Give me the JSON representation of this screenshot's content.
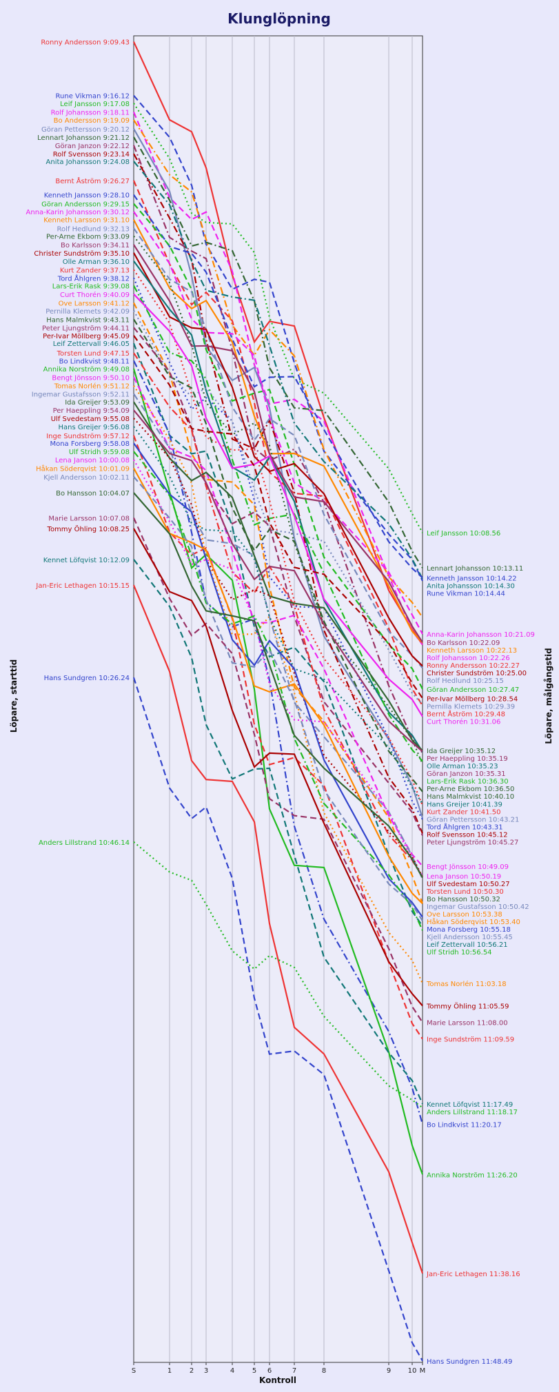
{
  "chart_data": {
    "type": "line",
    "title": "Klunglöpning",
    "xlabel": "Kontroll",
    "ylabel_left": "Löpare, starttid",
    "ylabel_right": "Löpare, målgångstid",
    "controls": [
      "S",
      "1",
      "2",
      "3",
      "4",
      "5",
      "6",
      "7",
      "8",
      "9",
      "10",
      "M"
    ],
    "control_x": [
      0,
      52,
      84,
      105,
      143,
      175,
      197,
      233,
      276,
      370,
      404,
      419
    ],
    "ylim": [
      "9:09",
      "11:49"
    ],
    "grid": true,
    "series": [
      {
        "name": "Ronny Andersson",
        "start": "9:09.43",
        "finish": "10:22.27",
        "color": "#ee3333",
        "dash": "solid"
      },
      {
        "name": "Rune Vikman",
        "start": "9:16.12",
        "finish": "10:14.44",
        "color": "#3344cc",
        "dash": "dashed"
      },
      {
        "name": "Leif Jansson",
        "start": "9:17.08",
        "finish": "10:08.56",
        "color": "#22bb22",
        "dash": "dotted"
      },
      {
        "name": "Rolf Johansson",
        "start": "9:18.11",
        "finish": "10:22.26",
        "color": "#ee22ee",
        "dash": "dashed"
      },
      {
        "name": "Bo Andersson",
        "start": "9:19.09",
        "finish": "",
        "color": "#ff8800",
        "dash": "dashdot"
      },
      {
        "name": "Göran Pettersson",
        "start": "9:20.12",
        "finish": "10:43.21",
        "color": "#7788bb",
        "dash": "solid"
      },
      {
        "name": "Lennart Johansson",
        "start": "9:21.12",
        "finish": "10:13.11",
        "color": "#336633",
        "dash": "dashdot"
      },
      {
        "name": "Göran Janzon",
        "start": "9:22.12",
        "finish": "10:35.31",
        "color": "#993366",
        "dash": "dashdot"
      },
      {
        "name": "Rolf Svensson",
        "start": "9:23.14",
        "finish": "10:45.12",
        "color": "#aa0000",
        "dash": "dashdot"
      },
      {
        "name": "Anita Johansson",
        "start": "9:24.08",
        "finish": "10:14.30",
        "color": "#117777",
        "dash": "dashdot"
      },
      {
        "name": "Bernt Åström",
        "start": "9:26.27",
        "finish": "10:29.48",
        "color": "#ee3333",
        "dash": "dashed"
      },
      {
        "name": "Kenneth Jansson",
        "start": "9:28.10",
        "finish": "10:14.22",
        "color": "#3344cc",
        "dash": "dashed"
      },
      {
        "name": "Göran Andersson",
        "start": "9:29.15",
        "finish": "10:27.47",
        "color": "#22bb22",
        "dash": "dashed"
      },
      {
        "name": "Anna-Karin Johansson",
        "start": "9:30.12",
        "finish": "10:21.09",
        "color": "#ee22ee",
        "dash": "dashed"
      },
      {
        "name": "Kenneth Larsson",
        "start": "9:31.10",
        "finish": "10:22.13",
        "color": "#ff8800",
        "dash": "solid"
      },
      {
        "name": "Rolf Hedlund",
        "start": "9:32.13",
        "finish": "10:25.15",
        "color": "#7788bb",
        "dash": "dashed"
      },
      {
        "name": "Per-Arne Ekbom",
        "start": "9:33.09",
        "finish": "10:36.50",
        "color": "#336633",
        "dash": "dotted"
      },
      {
        "name": "Bo Karlsson",
        "start": "9:34.11",
        "finish": "10:22.09",
        "color": "#993366",
        "dash": "solid"
      },
      {
        "name": "Christer Sundström",
        "start": "9:35.10",
        "finish": "10:25.00",
        "color": "#aa0000",
        "dash": "solid"
      },
      {
        "name": "Olle Arman",
        "start": "9:36.10",
        "finish": "10:35.23",
        "color": "#117777",
        "dash": "solid"
      },
      {
        "name": "Kurt Zander",
        "start": "9:37.13",
        "finish": "10:41.50",
        "color": "#ee3333",
        "dash": "dotted"
      },
      {
        "name": "Tord Åhlgren",
        "start": "9:38.12",
        "finish": "10:43.31",
        "color": "#3344cc",
        "dash": "dotted"
      },
      {
        "name": "Lars-Erik Rask",
        "start": "9:39.08",
        "finish": "10:36.30",
        "color": "#22bb22",
        "dash": "dashdot"
      },
      {
        "name": "Curt Thorén",
        "start": "9:40.09",
        "finish": "10:31.06",
        "color": "#ee22ee",
        "dash": "solid"
      },
      {
        "name": "Ove Larsson",
        "start": "9:41.12",
        "finish": "10:53.38",
        "color": "#ff8800",
        "dash": "dashed"
      },
      {
        "name": "Pernilla Klemets",
        "start": "9:42.09",
        "finish": "10:29.39",
        "color": "#7788bb",
        "dash": "dotted"
      },
      {
        "name": "Hans Malmkvist",
        "start": "9:43.11",
        "finish": "10:40.10",
        "color": "#336633",
        "dash": "dashed"
      },
      {
        "name": "Peter Ljungström",
        "start": "9:44.11",
        "finish": "10:45.27",
        "color": "#993366",
        "dash": "dashed"
      },
      {
        "name": "Per-Ivar Möllberg",
        "start": "9:45.09",
        "finish": "10:28.54",
        "color": "#aa0000",
        "dash": "dashed"
      },
      {
        "name": "Leif Zettervall",
        "start": "9:46.05",
        "finish": "10:56.21",
        "color": "#117777",
        "dash": "dashed"
      },
      {
        "name": "Torsten Lund",
        "start": "9:47.15",
        "finish": "10:50.30",
        "color": "#ee3333",
        "dash": "dashdot"
      },
      {
        "name": "Bo Lindkvist",
        "start": "9:48.11",
        "finish": "11:20.17",
        "color": "#3344cc",
        "dash": "dashdot"
      },
      {
        "name": "Annika Norström",
        "start": "9:49.08",
        "finish": "11:26.20",
        "color": "#22bb22",
        "dash": "solid"
      },
      {
        "name": "Bengt Jönsson",
        "start": "9:50.10",
        "finish": "10:49.09",
        "color": "#ee22ee",
        "dash": "dashed"
      },
      {
        "name": "Tomas Norlén",
        "start": "9:51.12",
        "finish": "11:03.18",
        "color": "#ff8800",
        "dash": "dotted"
      },
      {
        "name": "Ingemar Gustafsson",
        "start": "9:52.11",
        "finish": "10:50.42",
        "color": "#7788bb",
        "dash": "dashdot"
      },
      {
        "name": "Ida Greijer",
        "start": "9:53.09",
        "finish": "10:35.12",
        "color": "#336633",
        "dash": "solid"
      },
      {
        "name": "Per Haeppling",
        "start": "9:54.09",
        "finish": "10:35.19",
        "color": "#993366",
        "dash": "solid"
      },
      {
        "name": "Ulf Svedestam",
        "start": "9:55.08",
        "finish": "10:50.27",
        "color": "#aa0000",
        "dash": "dotted"
      },
      {
        "name": "Hans Greijer",
        "start": "9:56.08",
        "finish": "10:41.39",
        "color": "#117777",
        "dash": "dotted"
      },
      {
        "name": "Inge Sundström",
        "start": "9:57.12",
        "finish": "11:09.59",
        "color": "#ee3333",
        "dash": "dashed"
      },
      {
        "name": "Mona Forsberg",
        "start": "9:58.08",
        "finish": "10:55.18",
        "color": "#3344cc",
        "dash": "solid"
      },
      {
        "name": "Ulf Stridh",
        "start": "9:59.08",
        "finish": "10:56.54",
        "color": "#22bb22",
        "dash": "dashdot"
      },
      {
        "name": "Lena Janson",
        "start": "10:00.08",
        "finish": "10:50.19",
        "color": "#ee22ee",
        "dash": "dotted"
      },
      {
        "name": "Håkan Söderqvist",
        "start": "10:01.09",
        "finish": "10:53.40",
        "color": "#ff8800",
        "dash": "solid"
      },
      {
        "name": "Kjell Andersson",
        "start": "10:02.11",
        "finish": "10:55.45",
        "color": "#7788bb",
        "dash": "dashed"
      },
      {
        "name": "Bo Hansson",
        "start": "10:04.07",
        "finish": "10:50.32",
        "color": "#336633",
        "dash": "solid"
      },
      {
        "name": "Marie Larsson",
        "start": "10:07.08",
        "finish": "11:08.00",
        "color": "#993366",
        "dash": "dashed"
      },
      {
        "name": "Tommy Öhling",
        "start": "10:08.25",
        "finish": "11:05.59",
        "color": "#aa0000",
        "dash": "solid"
      },
      {
        "name": "Kennet Löfqvist",
        "start": "10:12.09",
        "finish": "11:17.49",
        "color": "#117777",
        "dash": "dashed"
      },
      {
        "name": "Jan-Eric Lethagen",
        "start": "10:15.15",
        "finish": "11:38.16",
        "color": "#ee3333",
        "dash": "solid"
      },
      {
        "name": "Hans Sundgren",
        "start": "10:26.24",
        "finish": "11:48.49",
        "color": "#3344cc",
        "dash": "dashed"
      },
      {
        "name": "Anders Lillstrand",
        "start": "10:46.14",
        "finish": "11:18.17",
        "color": "#22bb22",
        "dash": "dotted"
      }
    ]
  }
}
